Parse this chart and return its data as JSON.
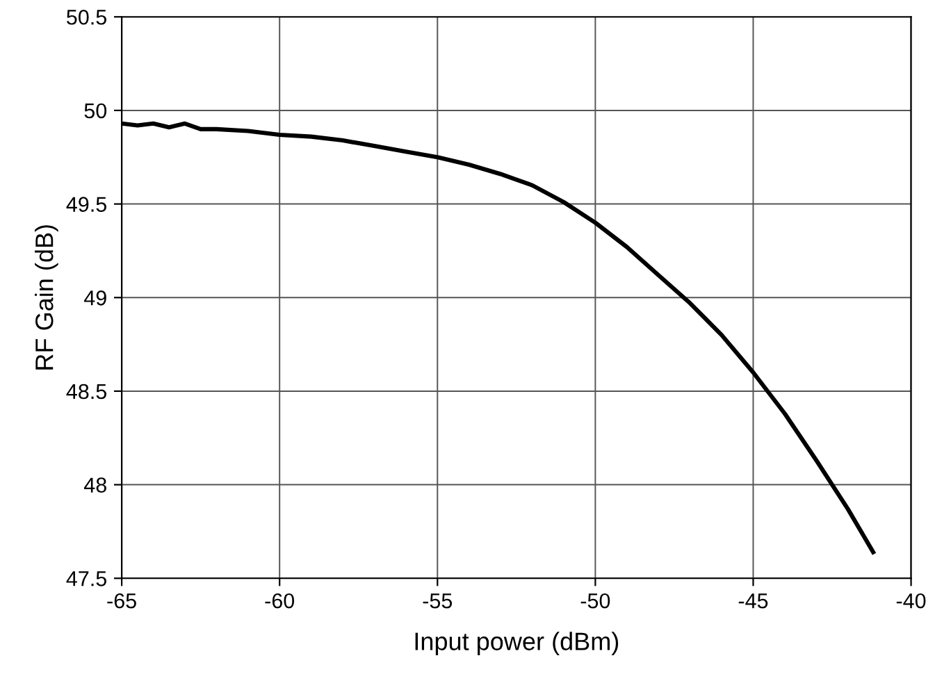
{
  "chart_data": {
    "type": "line",
    "xlabel": "Input power (dBm)",
    "ylabel": "RF Gain (dB)",
    "xlim": [
      -65,
      -40
    ],
    "ylim": [
      47.5,
      50.5
    ],
    "xticks": [
      -65,
      -60,
      -55,
      -50,
      -45,
      -40
    ],
    "yticks": [
      47.5,
      48,
      48.5,
      49,
      49.5,
      50,
      50.5
    ],
    "grid": true,
    "marker": "none",
    "line_style": "solid",
    "series": [
      {
        "color": "#000000",
        "x": [
          -65,
          -64.5,
          -64,
          -63.5,
          -63,
          -62.5,
          -62,
          -61,
          -60,
          -59,
          -58,
          -57,
          -56,
          -55,
          -54,
          -53,
          -52,
          -51,
          -50,
          -49,
          -48,
          -47,
          -46,
          -45,
          -44,
          -43,
          -42,
          -41.2
        ],
        "values": [
          49.93,
          49.92,
          49.93,
          49.91,
          49.93,
          49.9,
          49.9,
          49.89,
          49.87,
          49.86,
          49.84,
          49.81,
          49.78,
          49.75,
          49.71,
          49.66,
          49.6,
          49.51,
          49.4,
          49.27,
          49.12,
          48.97,
          48.8,
          48.6,
          48.38,
          48.13,
          47.87,
          47.64
        ]
      }
    ]
  }
}
